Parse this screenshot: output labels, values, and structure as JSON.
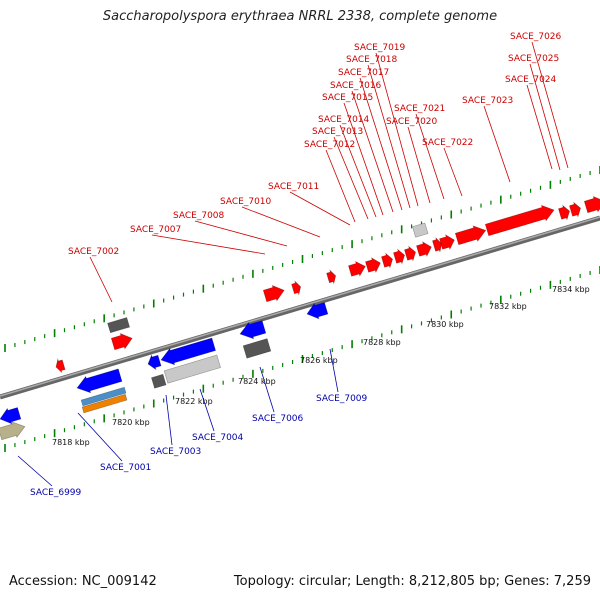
{
  "title": "Saccharopolyspora erythraea NRRL 2338, complete genome",
  "footer": {
    "accession": "Accession: NC_009142",
    "topology": "Topology: circular; Length: 8,212,805 bp; Genes: 7,259"
  },
  "colors": {
    "forward_gene": "#ff0000",
    "reverse_gene": "#0000ff",
    "rna_gene": "#555555",
    "pseudo_gene": "#c8c8c8",
    "tick": "#008000",
    "forward_label": "#cc0000",
    "reverse_label": "#0000aa"
  },
  "scale_labels": [
    "7818 kbp",
    "7820 kbp",
    "7822 kbp",
    "7824 kbp",
    "7826 kbp",
    "7828 kbp",
    "7830 kbp",
    "7832 kbp",
    "7834 kbp"
  ],
  "forward_labels": [
    "SACE_7002",
    "SACE_7007",
    "SACE_7008",
    "SACE_7010",
    "SACE_7011",
    "SACE_7012",
    "SACE_7013",
    "SACE_7014",
    "SACE_7015",
    "SACE_7016",
    "SACE_7017",
    "SACE_7018",
    "SACE_7019",
    "SACE_7020",
    "SACE_7021",
    "SACE_7022",
    "SACE_7023",
    "SACE_7024",
    "SACE_7025",
    "SACE_7026"
  ],
  "reverse_labels": [
    "SACE_6999",
    "SACE_7001",
    "SACE_7003",
    "SACE_7004",
    "SACE_7006",
    "SACE_7009"
  ]
}
